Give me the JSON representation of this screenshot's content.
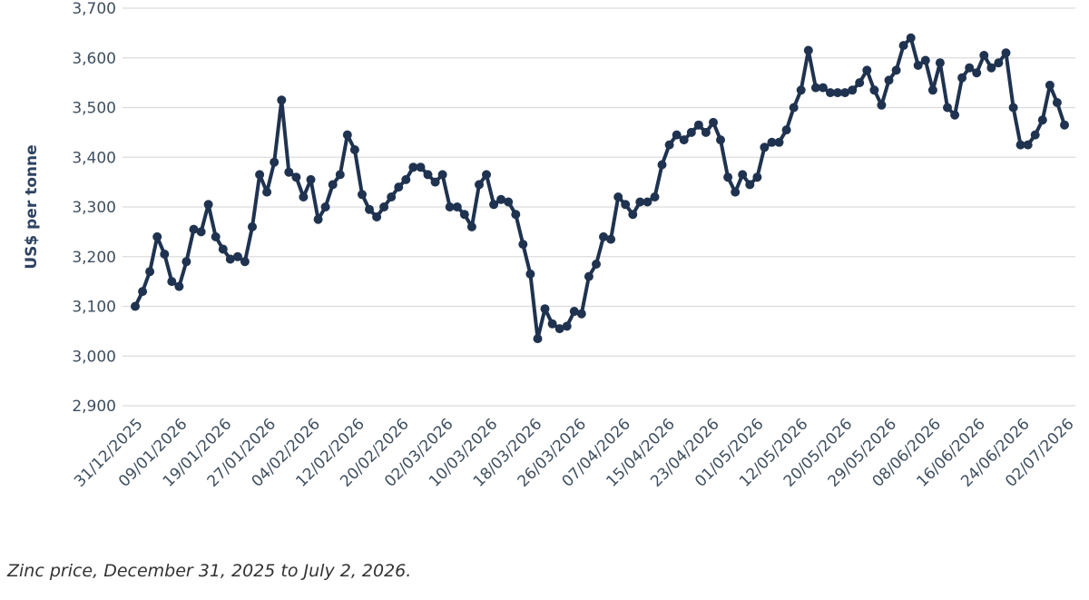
{
  "caption": "Zinc price, December 31, 2025 to July 2, 2026.",
  "colors": {
    "line": "#1f3350",
    "grid": "#dcdcdc",
    "axis_text": "#3f4f5f"
  },
  "chart_data": {
    "type": "line",
    "title": "",
    "xlabel": "",
    "ylabel": "US$ per tonne",
    "ylim": [
      2900,
      3700
    ],
    "yticks": [
      "2,900",
      "3,000",
      "3,100",
      "3,200",
      "3,300",
      "3,400",
      "3,500",
      "3,600",
      "3,700"
    ],
    "grid": true,
    "legend": "none",
    "x_ticks": [
      "31/12/2025",
      "09/01/2026",
      "19/01/2026",
      "27/01/2026",
      "04/02/2026",
      "12/02/2026",
      "20/02/2026",
      "02/03/2026",
      "10/03/2026",
      "18/03/2026",
      "26/03/2026",
      "07/04/2026",
      "15/04/2026",
      "23/04/2026",
      "01/05/2026",
      "12/05/2026",
      "20/05/2026",
      "29/05/2026",
      "08/06/2026",
      "16/06/2026",
      "24/06/2026",
      "02/07/2026"
    ],
    "series": [
      {
        "values": [
          3100,
          3130,
          3170,
          3240,
          3205,
          3150,
          3140,
          3190,
          3255,
          3250,
          3305,
          3240,
          3215,
          3195,
          3200,
          3190,
          3260,
          3365,
          3330,
          3390,
          3515,
          3370,
          3360,
          3320,
          3355,
          3275,
          3300,
          3345,
          3365,
          3445,
          3415,
          3325,
          3295,
          3280,
          3300,
          3320,
          3340,
          3355,
          3380,
          3380,
          3365,
          3350,
          3365,
          3300,
          3300,
          3285,
          3260,
          3345,
          3365,
          3305,
          3315,
          3310,
          3285,
          3225,
          3165,
          3035,
          3095,
          3065,
          3055,
          3060,
          3090,
          3085,
          3160,
          3185,
          3240,
          3235,
          3320,
          3305,
          3285,
          3310,
          3310,
          3320,
          3385,
          3425,
          3445,
          3435,
          3450,
          3465,
          3450,
          3470,
          3435,
          3360,
          3330,
          3365,
          3345,
          3360,
          3420,
          3430,
          3430,
          3455,
          3500,
          3535,
          3615,
          3540,
          3540,
          3530,
          3530,
          3530,
          3535,
          3550,
          3575,
          3535,
          3505,
          3555,
          3575,
          3625,
          3640,
          3585,
          3595,
          3535,
          3590,
          3500,
          3485,
          3560,
          3580,
          3570,
          3605,
          3580,
          3590,
          3610,
          3500,
          3425,
          3425,
          3445,
          3475,
          3545,
          3510,
          3465
        ]
      }
    ]
  }
}
